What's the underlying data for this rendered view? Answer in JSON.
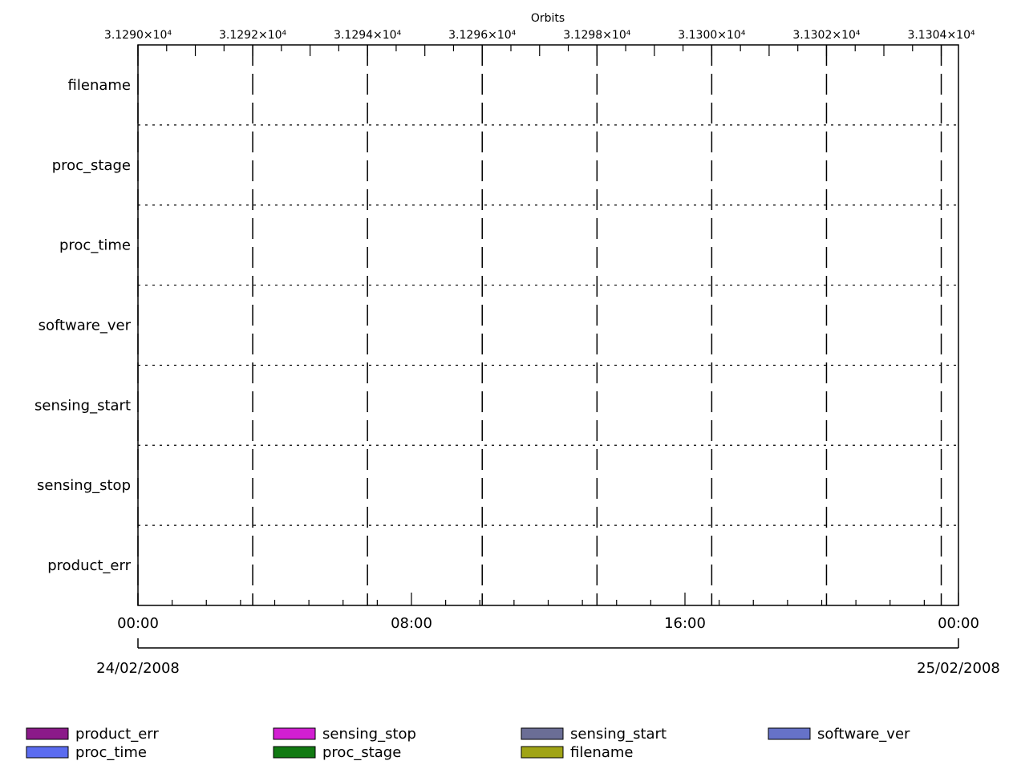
{
  "chart_data": {
    "type": "timeline",
    "title": "",
    "top_axis": {
      "label": "Orbits",
      "ticks": [
        "3.1290×10⁴",
        "3.1292×10⁴",
        "3.1294×10⁴",
        "3.1296×10⁴",
        "3.1298×10⁴",
        "3.1300×10⁴",
        "3.1302×10⁴",
        "3.1304×10⁴"
      ],
      "range": [
        31290,
        31304.3
      ]
    },
    "rows": [
      "filename",
      "proc_stage",
      "proc_time",
      "software_ver",
      "sensing_start",
      "sensing_stop",
      "product_err"
    ],
    "bottom_axis": {
      "ticks": [
        "00:00",
        "08:00",
        "16:00",
        "00:00"
      ],
      "tick_hours": [
        0,
        8,
        16,
        24
      ],
      "range_hours": [
        0,
        24
      ],
      "start_date": "24/02/2008",
      "end_date": "25/02/2008"
    },
    "grid": true,
    "legend_position": "bottom",
    "legend": [
      {
        "name": "product_err",
        "color": "#8b1a89"
      },
      {
        "name": "sensing_stop",
        "color": "#d21fd2"
      },
      {
        "name": "sensing_start",
        "color": "#6b6e96"
      },
      {
        "name": "software_ver",
        "color": "#6672c8"
      },
      {
        "name": "proc_time",
        "color": "#5b6cf0"
      },
      {
        "name": "proc_stage",
        "color": "#117a12"
      },
      {
        "name": "filename",
        "color": "#a0a416"
      }
    ],
    "series": [
      {
        "name": "product_err",
        "values": []
      },
      {
        "name": "sensing_stop",
        "values": []
      },
      {
        "name": "sensing_start",
        "values": []
      },
      {
        "name": "software_ver",
        "values": []
      },
      {
        "name": "proc_time",
        "values": []
      },
      {
        "name": "proc_stage",
        "values": []
      },
      {
        "name": "filename",
        "values": []
      }
    ]
  }
}
